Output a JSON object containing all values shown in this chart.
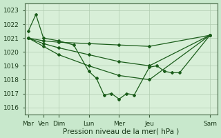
{
  "background_color": "#c8e8cc",
  "plot_bg_color": "#d8efd8",
  "grid_color": "#b0ccb0",
  "line_color": "#1a5c1a",
  "xlabel": "Pression niveau de la mer( hPa )",
  "xlabel_fontsize": 7.5,
  "ylim": [
    1015.5,
    1023.5
  ],
  "yticks": [
    1016,
    1017,
    1018,
    1019,
    1020,
    1021,
    1022,
    1023
  ],
  "xtick_labels": [
    "Mar",
    "Ven",
    "Dim",
    "Lun",
    "Mer",
    "Jeu",
    "Sam"
  ],
  "xtick_positions": [
    0,
    2,
    4,
    8,
    12,
    16,
    24
  ],
  "xlim": [
    -0.5,
    25
  ],
  "lines": [
    {
      "x": [
        0,
        1,
        2,
        4,
        6,
        8,
        9,
        10,
        11,
        12,
        13,
        14,
        16,
        17,
        18,
        19,
        20,
        24
      ],
      "y": [
        1021.5,
        1022.7,
        1021.0,
        1020.8,
        1020.5,
        1018.6,
        1018.1,
        1016.9,
        1017.0,
        1016.6,
        1017.0,
        1016.9,
        1018.9,
        1019.0,
        1018.6,
        1018.5,
        1018.5,
        1021.2
      ]
    },
    {
      "x": [
        0,
        2,
        4,
        8,
        12,
        16,
        24
      ],
      "y": [
        1021.0,
        1020.8,
        1020.7,
        1020.6,
        1020.5,
        1020.4,
        1021.2
      ]
    },
    {
      "x": [
        0,
        2,
        4,
        8,
        12,
        16,
        24
      ],
      "y": [
        1021.0,
        1020.6,
        1020.3,
        1019.8,
        1019.3,
        1019.0,
        1021.2
      ]
    },
    {
      "x": [
        0,
        2,
        4,
        8,
        12,
        16,
        24
      ],
      "y": [
        1021.0,
        1020.4,
        1019.8,
        1019.0,
        1018.3,
        1018.0,
        1021.2
      ]
    }
  ],
  "marker": "D",
  "marker_size": 2.0,
  "linewidth": 0.9,
  "tick_fontsize": 6.5
}
